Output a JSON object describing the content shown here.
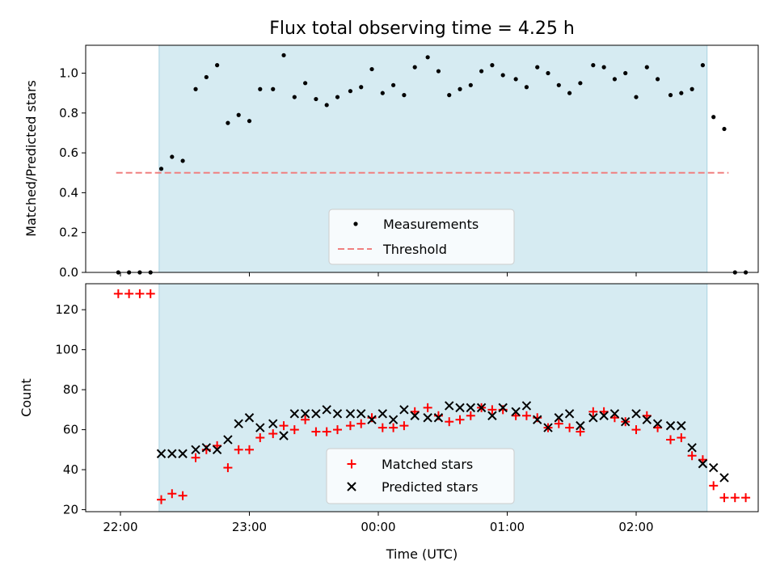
{
  "chart_data": [
    {
      "type": "scatter",
      "title": "Flux total observing time = 4.25 h",
      "xlabel": "",
      "ylabel": "Matched/Predicted stars",
      "ylim": [
        0,
        1.14
      ],
      "yticks": [
        "0.0",
        "0.2",
        "0.4",
        "0.6",
        "0.8",
        "1.0"
      ],
      "shaded_span": [
        "22:18",
        "02:33"
      ],
      "threshold": 0.5,
      "threshold_range": [
        "21:58",
        "02:43"
      ],
      "legend": {
        "position": "lower-center",
        "entries": [
          "Measurements",
          "Threshold"
        ]
      },
      "series": [
        {
          "name": "Measurements",
          "points": [
            [
              "21:59",
              0.0
            ],
            [
              "22:04",
              0.0
            ],
            [
              "22:09",
              0.0
            ],
            [
              "22:14",
              0.0
            ],
            [
              "22:19",
              0.52
            ],
            [
              "22:24",
              0.58
            ],
            [
              "22:29",
              0.56
            ],
            [
              "22:35",
              0.92
            ],
            [
              "22:40",
              0.98
            ],
            [
              "22:45",
              1.04
            ],
            [
              "22:50",
              0.75
            ],
            [
              "22:55",
              0.79
            ],
            [
              "23:00",
              0.76
            ],
            [
              "23:05",
              0.92
            ],
            [
              "23:11",
              0.92
            ],
            [
              "23:16",
              1.09
            ],
            [
              "23:21",
              0.88
            ],
            [
              "23:26",
              0.95
            ],
            [
              "23:31",
              0.87
            ],
            [
              "23:36",
              0.84
            ],
            [
              "23:41",
              0.88
            ],
            [
              "23:47",
              0.91
            ],
            [
              "23:52",
              0.93
            ],
            [
              "23:57",
              1.02
            ],
            [
              "00:02",
              0.9
            ],
            [
              "00:07",
              0.94
            ],
            [
              "00:12",
              0.89
            ],
            [
              "00:17",
              1.03
            ],
            [
              "00:23",
              1.08
            ],
            [
              "00:28",
              1.01
            ],
            [
              "00:33",
              0.89
            ],
            [
              "00:38",
              0.92
            ],
            [
              "00:43",
              0.94
            ],
            [
              "00:48",
              1.01
            ],
            [
              "00:53",
              1.04
            ],
            [
              "00:58",
              0.99
            ],
            [
              "01:04",
              0.97
            ],
            [
              "01:09",
              0.93
            ],
            [
              "01:14",
              1.03
            ],
            [
              "01:19",
              1.0
            ],
            [
              "01:24",
              0.94
            ],
            [
              "01:29",
              0.9
            ],
            [
              "01:34",
              0.95
            ],
            [
              "01:40",
              1.04
            ],
            [
              "01:45",
              1.03
            ],
            [
              "01:50",
              0.97
            ],
            [
              "01:55",
              1.0
            ],
            [
              "02:00",
              0.88
            ],
            [
              "02:05",
              1.03
            ],
            [
              "02:10",
              0.97
            ],
            [
              "02:16",
              0.89
            ],
            [
              "02:21",
              0.9
            ],
            [
              "02:26",
              0.92
            ],
            [
              "02:31",
              1.04
            ],
            [
              "02:36",
              0.78
            ],
            [
              "02:41",
              0.72
            ],
            [
              "02:46",
              0.0
            ],
            [
              "02:51",
              0.0
            ]
          ]
        },
        {
          "name": "Threshold",
          "color": "#f08080"
        }
      ]
    },
    {
      "type": "scatter",
      "title": "",
      "xlabel": "Time (UTC)",
      "ylabel": "Count",
      "ylim": [
        19,
        133
      ],
      "yticks": [
        "20",
        "40",
        "60",
        "80",
        "100",
        "120"
      ],
      "xticks": [
        "22:00",
        "23:00",
        "00:00",
        "01:00",
        "02:00"
      ],
      "shaded_span": [
        "22:18",
        "02:33"
      ],
      "legend": {
        "position": "lower-center",
        "entries": [
          "Matched stars",
          "Predicted stars"
        ]
      },
      "series": [
        {
          "name": "Matched stars",
          "color": "#ff0000",
          "points": [
            [
              "21:59",
              128
            ],
            [
              "22:04",
              128
            ],
            [
              "22:09",
              128
            ],
            [
              "22:14",
              128
            ],
            [
              "22:19",
              25
            ],
            [
              "22:24",
              28
            ],
            [
              "22:29",
              27
            ],
            [
              "22:35",
              46
            ],
            [
              "22:40",
              50
            ],
            [
              "22:45",
              52
            ],
            [
              "22:50",
              41
            ],
            [
              "22:55",
              50
            ],
            [
              "23:00",
              50
            ],
            [
              "23:05",
              56
            ],
            [
              "23:11",
              58
            ],
            [
              "23:16",
              62
            ],
            [
              "23:21",
              60
            ],
            [
              "23:26",
              65
            ],
            [
              "23:31",
              59
            ],
            [
              "23:36",
              59
            ],
            [
              "23:41",
              60
            ],
            [
              "23:47",
              62
            ],
            [
              "23:52",
              63
            ],
            [
              "23:57",
              66
            ],
            [
              "00:02",
              61
            ],
            [
              "00:07",
              61
            ],
            [
              "00:12",
              62
            ],
            [
              "00:17",
              69
            ],
            [
              "00:23",
              71
            ],
            [
              "00:28",
              67
            ],
            [
              "00:33",
              64
            ],
            [
              "00:38",
              65
            ],
            [
              "00:43",
              67
            ],
            [
              "00:48",
              71
            ],
            [
              "00:53",
              70
            ],
            [
              "00:58",
              70
            ],
            [
              "01:04",
              67
            ],
            [
              "01:09",
              67
            ],
            [
              "01:14",
              66
            ],
            [
              "01:19",
              61
            ],
            [
              "01:24",
              63
            ],
            [
              "01:29",
              61
            ],
            [
              "01:34",
              59
            ],
            [
              "01:40",
              69
            ],
            [
              "01:45",
              69
            ],
            [
              "01:50",
              66
            ],
            [
              "01:55",
              64
            ],
            [
              "02:00",
              60
            ],
            [
              "02:05",
              67
            ],
            [
              "02:10",
              61
            ],
            [
              "02:16",
              55
            ],
            [
              "02:21",
              56
            ],
            [
              "02:26",
              47
            ],
            [
              "02:31",
              45
            ],
            [
              "02:36",
              32
            ],
            [
              "02:41",
              26
            ],
            [
              "02:46",
              26
            ],
            [
              "02:51",
              26
            ]
          ]
        },
        {
          "name": "Predicted stars",
          "color": "#000000",
          "points": [
            [
              "22:19",
              48
            ],
            [
              "22:24",
              48
            ],
            [
              "22:29",
              48
            ],
            [
              "22:35",
              50
            ],
            [
              "22:40",
              51
            ],
            [
              "22:45",
              50
            ],
            [
              "22:50",
              55
            ],
            [
              "22:55",
              63
            ],
            [
              "23:00",
              66
            ],
            [
              "23:05",
              61
            ],
            [
              "23:11",
              63
            ],
            [
              "23:16",
              57
            ],
            [
              "23:21",
              68
            ],
            [
              "23:26",
              68
            ],
            [
              "23:31",
              68
            ],
            [
              "23:36",
              70
            ],
            [
              "23:41",
              68
            ],
            [
              "23:47",
              68
            ],
            [
              "23:52",
              68
            ],
            [
              "23:57",
              65
            ],
            [
              "00:02",
              68
            ],
            [
              "00:07",
              65
            ],
            [
              "00:12",
              70
            ],
            [
              "00:17",
              67
            ],
            [
              "00:23",
              66
            ],
            [
              "00:28",
              66
            ],
            [
              "00:33",
              72
            ],
            [
              "00:38",
              71
            ],
            [
              "00:43",
              71
            ],
            [
              "00:48",
              71
            ],
            [
              "00:53",
              67
            ],
            [
              "00:58",
              71
            ],
            [
              "01:04",
              69
            ],
            [
              "01:09",
              72
            ],
            [
              "01:14",
              65
            ],
            [
              "01:19",
              61
            ],
            [
              "01:24",
              66
            ],
            [
              "01:29",
              68
            ],
            [
              "01:34",
              62
            ],
            [
              "01:40",
              66
            ],
            [
              "01:45",
              67
            ],
            [
              "01:50",
              68
            ],
            [
              "01:55",
              64
            ],
            [
              "02:00",
              68
            ],
            [
              "02:05",
              65
            ],
            [
              "02:10",
              63
            ],
            [
              "02:16",
              62
            ],
            [
              "02:21",
              62
            ],
            [
              "02:26",
              51
            ],
            [
              "02:31",
              43
            ],
            [
              "02:36",
              41
            ],
            [
              "02:41",
              36
            ]
          ]
        }
      ]
    }
  ]
}
